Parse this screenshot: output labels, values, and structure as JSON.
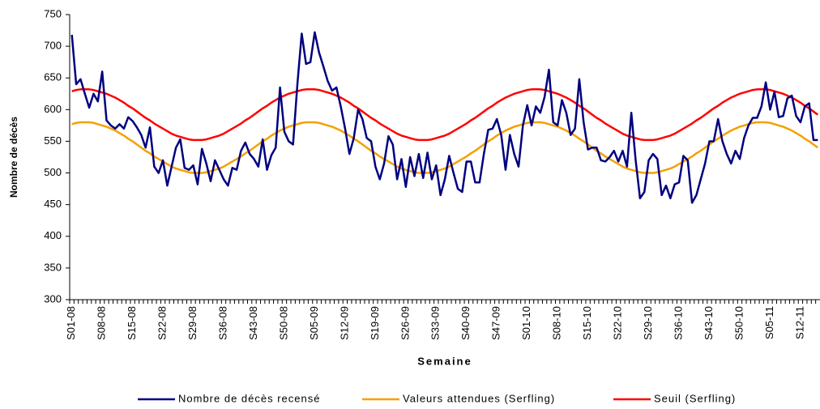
{
  "chart_data": {
    "type": "line",
    "x_label": "Semaine",
    "y_label": "Nombre de décès",
    "ylim": [
      300,
      750
    ],
    "yticks": [
      300,
      350,
      400,
      450,
      500,
      550,
      600,
      650,
      700,
      750
    ],
    "grid": false,
    "legend": "bottom",
    "categories": [
      "S01-08",
      null,
      null,
      null,
      null,
      null,
      null,
      "S08-08",
      null,
      null,
      null,
      null,
      null,
      null,
      "S15-08",
      null,
      null,
      null,
      null,
      null,
      null,
      "S22-08",
      null,
      null,
      null,
      null,
      null,
      null,
      "S29-08",
      null,
      null,
      null,
      null,
      null,
      null,
      "S36-08",
      null,
      null,
      null,
      null,
      null,
      null,
      "S43-08",
      null,
      null,
      null,
      null,
      null,
      null,
      "S50-08",
      null,
      null,
      null,
      null,
      null,
      null,
      "S05-09",
      null,
      null,
      null,
      null,
      null,
      null,
      "S12-09",
      null,
      null,
      null,
      null,
      null,
      null,
      "S19-09",
      null,
      null,
      null,
      null,
      null,
      null,
      "S26-09",
      null,
      null,
      null,
      null,
      null,
      null,
      "S33-09",
      null,
      null,
      null,
      null,
      null,
      null,
      "S40-09",
      null,
      null,
      null,
      null,
      null,
      null,
      "S47-09",
      null,
      null,
      null,
      null,
      null,
      null,
      "S01-10",
      null,
      null,
      null,
      null,
      null,
      null,
      "S08-10",
      null,
      null,
      null,
      null,
      null,
      null,
      "S15-10",
      null,
      null,
      null,
      null,
      null,
      null,
      "S22-10",
      null,
      null,
      null,
      null,
      null,
      null,
      "S29-10",
      null,
      null,
      null,
      null,
      null,
      null,
      "S36-10",
      null,
      null,
      null,
      null,
      null,
      null,
      "S43-10",
      null,
      null,
      null,
      null,
      null,
      null,
      "S50-10",
      null,
      null,
      null,
      null,
      null,
      null,
      "S05-11",
      null,
      null,
      null,
      null,
      null,
      null,
      "S12-11",
      null,
      null,
      null,
      null
    ],
    "series": [
      {
        "name": "Nombre de décès recensé",
        "color": "#000080",
        "values": [
          718,
          640,
          648,
          625,
          603,
          625,
          613,
          660,
          583,
          575,
          570,
          577,
          570,
          588,
          582,
          572,
          560,
          540,
          572,
          510,
          500,
          520,
          480,
          510,
          540,
          553,
          508,
          505,
          512,
          482,
          538,
          515,
          487,
          520,
          505,
          490,
          480,
          508,
          505,
          535,
          548,
          530,
          522,
          510,
          553,
          505,
          528,
          540,
          635,
          565,
          550,
          545,
          640,
          720,
          672,
          675,
          722,
          690,
          668,
          645,
          630,
          635,
          605,
          570,
          530,
          555,
          600,
          585,
          555,
          550,
          510,
          490,
          515,
          558,
          545,
          490,
          522,
          478,
          525,
          495,
          530,
          492,
          532,
          490,
          512,
          465,
          490,
          527,
          500,
          475,
          470,
          518,
          518,
          485,
          485,
          530,
          568,
          570,
          585,
          560,
          505,
          560,
          530,
          510,
          575,
          607,
          575,
          605,
          595,
          620,
          663,
          580,
          575,
          615,
          595,
          560,
          570,
          648,
          580,
          537,
          540,
          540,
          520,
          518,
          525,
          535,
          518,
          535,
          510,
          595,
          520,
          460,
          470,
          520,
          530,
          522,
          465,
          480,
          460,
          482,
          485,
          527,
          520,
          453,
          465,
          490,
          515,
          550,
          550,
          585,
          550,
          530,
          515,
          535,
          522,
          555,
          575,
          587,
          587,
          605,
          643,
          600,
          628,
          588,
          590,
          618,
          622,
          590,
          580,
          605,
          610,
          552,
          552
        ]
      },
      {
        "name": "Valeurs attendues (Serfling)",
        "color": "#f5a000",
        "values": [
          577,
          579,
          580,
          580,
          580,
          579,
          577,
          575,
          573,
          570,
          567,
          563,
          559,
          554,
          550,
          545,
          540,
          535,
          531,
          526,
          522,
          518,
          514,
          510,
          507,
          505,
          503,
          501,
          500,
          500,
          500,
          501,
          503,
          505,
          507,
          510,
          514,
          518,
          522,
          526,
          531,
          535,
          540,
          545,
          550,
          554,
          559,
          563,
          567,
          570,
          573,
          575,
          577,
          579,
          580,
          580,
          580,
          579,
          577,
          575,
          573,
          570,
          567,
          563,
          559,
          554,
          550,
          545,
          540,
          535,
          531,
          526,
          522,
          518,
          514,
          510,
          507,
          505,
          503,
          501,
          500,
          500,
          500,
          501,
          503,
          505,
          507,
          510,
          514,
          518,
          522,
          526,
          531,
          535,
          540,
          545,
          550,
          554,
          559,
          563,
          567,
          570,
          573,
          575,
          577,
          579,
          580,
          580,
          580,
          579,
          577,
          575,
          573,
          570,
          567,
          563,
          559,
          554,
          550,
          545,
          540,
          535,
          531,
          526,
          522,
          518,
          514,
          510,
          507,
          505,
          503,
          501,
          500,
          500,
          500,
          501,
          503,
          505,
          507,
          510,
          514,
          518,
          522,
          526,
          531,
          535,
          540,
          545,
          550,
          554,
          559,
          563,
          567,
          570,
          573,
          575,
          577,
          579,
          580,
          580,
          580,
          579,
          577,
          575,
          573,
          570,
          567,
          563,
          559,
          554,
          550,
          545,
          540
        ]
      },
      {
        "name": "Seuil (Serfling)",
        "color": "#ff0000",
        "values": [
          629,
          631,
          632,
          632,
          632,
          631,
          629,
          627,
          625,
          622,
          619,
          615,
          611,
          606,
          602,
          597,
          592,
          587,
          583,
          578,
          574,
          570,
          566,
          562,
          559,
          557,
          555,
          553,
          552,
          552,
          552,
          553,
          555,
          557,
          559,
          562,
          566,
          570,
          574,
          578,
          583,
          587,
          592,
          597,
          602,
          606,
          611,
          615,
          619,
          622,
          625,
          627,
          629,
          631,
          632,
          632,
          632,
          631,
          629,
          627,
          625,
          622,
          619,
          615,
          611,
          606,
          602,
          597,
          592,
          587,
          583,
          578,
          574,
          570,
          566,
          562,
          559,
          557,
          555,
          553,
          552,
          552,
          552,
          553,
          555,
          557,
          559,
          562,
          566,
          570,
          574,
          578,
          583,
          587,
          592,
          597,
          602,
          606,
          611,
          615,
          619,
          622,
          625,
          627,
          629,
          631,
          632,
          632,
          632,
          631,
          629,
          627,
          625,
          622,
          619,
          615,
          611,
          606,
          602,
          597,
          592,
          587,
          583,
          578,
          574,
          570,
          566,
          562,
          559,
          557,
          555,
          553,
          552,
          552,
          552,
          553,
          555,
          557,
          559,
          562,
          566,
          570,
          574,
          578,
          583,
          587,
          592,
          597,
          602,
          606,
          611,
          615,
          619,
          622,
          625,
          627,
          629,
          631,
          632,
          632,
          632,
          631,
          629,
          627,
          625,
          622,
          619,
          615,
          611,
          606,
          602,
          597,
          592
        ]
      }
    ]
  }
}
